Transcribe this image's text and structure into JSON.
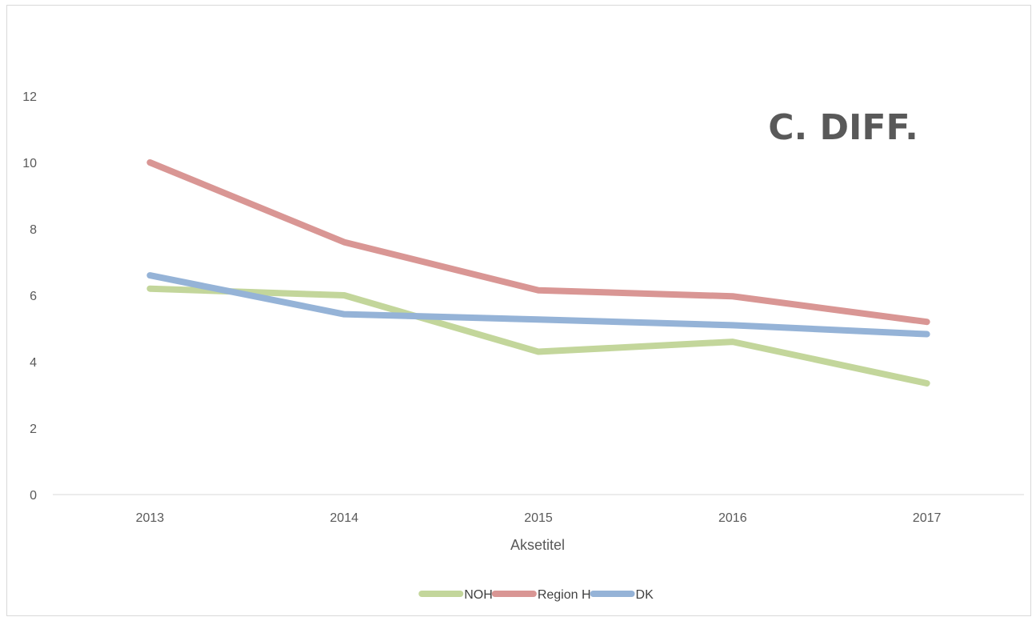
{
  "chart_data": {
    "type": "line",
    "title": "C. DIFF.",
    "xlabel": "Aksetitel",
    "ylabel": "",
    "categories": [
      "2013",
      "2014",
      "2015",
      "2016",
      "2017"
    ],
    "ylim": [
      0,
      12
    ],
    "yticks": [
      0,
      2,
      4,
      6,
      8,
      10,
      12
    ],
    "grid": false,
    "legend_position": "bottom",
    "series": [
      {
        "name": "NOH",
        "color": "#c3d69b",
        "values": [
          6.2,
          6.0,
          4.3,
          4.6,
          3.35
        ]
      },
      {
        "name": "Region H",
        "color": "#d99694",
        "values": [
          10.0,
          7.6,
          6.15,
          5.97,
          5.2
        ]
      },
      {
        "name": "DK",
        "color": "#95b3d7",
        "values": [
          6.6,
          5.43,
          5.27,
          5.1,
          4.83
        ]
      }
    ]
  }
}
